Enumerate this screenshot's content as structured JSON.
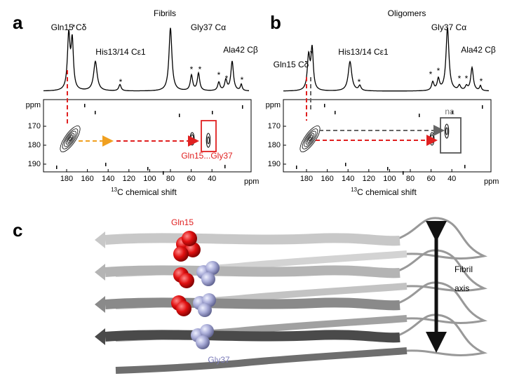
{
  "panels": [
    {
      "label": "a",
      "title": "Fibrils",
      "peaks": [
        "Gln15 Cδ",
        "His13/14 Cε1",
        "Gly37 Cα",
        "Ala42 Cβ"
      ],
      "star": "*",
      "axis_unit": "ppm",
      "xticks": [
        180,
        160,
        140,
        120,
        100,
        80,
        60,
        40
      ],
      "yticks": [
        170,
        180,
        190
      ],
      "xlabel_sup": "13",
      "xlabel": "C chemical shift",
      "annotation": "Gln15...Gly37"
    },
    {
      "label": "b",
      "title": "Oligomers",
      "peaks": [
        "Gln15 Cδ",
        "His13/14 Cε1",
        "Gly37 Cα",
        "Ala42 Cβ"
      ],
      "star": "*",
      "axis_unit": "ppm",
      "xticks": [
        180,
        160,
        140,
        120,
        100,
        80,
        60,
        40
      ],
      "yticks": [
        170,
        180,
        190
      ],
      "xlabel_sup": "13",
      "xlabel": "C chemical shift",
      "annotation": "na"
    }
  ],
  "structure": {
    "label": "c",
    "residue1": "Gln15",
    "residue2": "Gly37",
    "axis_label_1": "Fibril",
    "axis_label_2": "axis"
  }
}
